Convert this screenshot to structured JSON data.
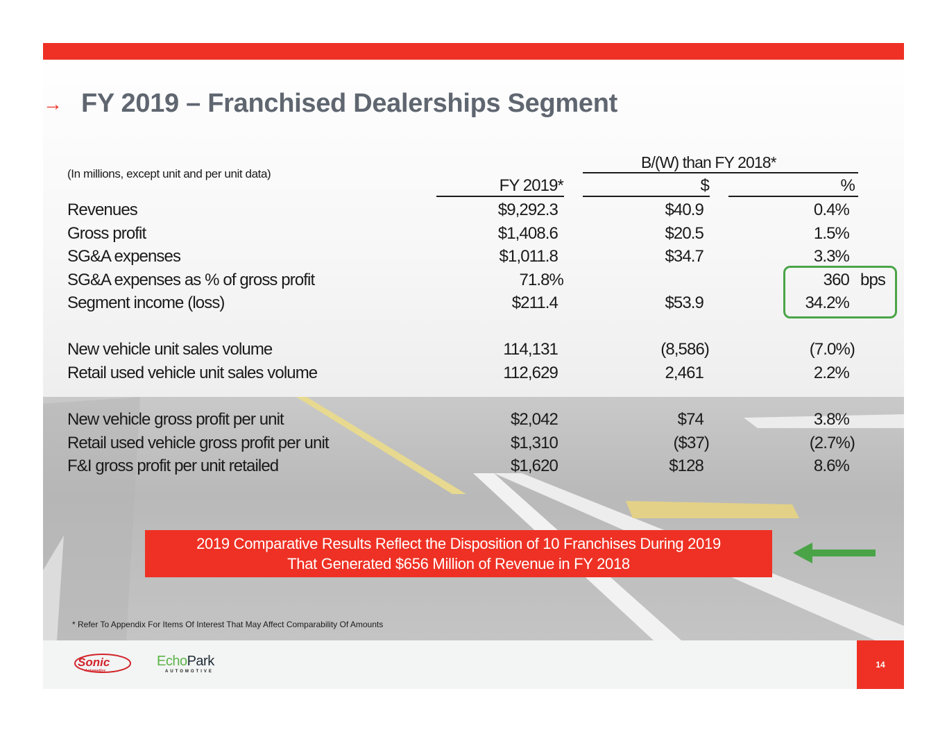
{
  "slide": {
    "title": "FY 2019 – Franchised Dealerships Segment",
    "title_arrow": "→",
    "page_number": "14",
    "colors": {
      "brand_red": "#ee3124",
      "title_gray": "#5f6670",
      "highlight_green": "#4aa447"
    }
  },
  "table": {
    "note": "(In millions, except unit and per unit data)",
    "group_header": "B/(W) than FY 2018*",
    "columns": [
      "FY 2019*",
      "$",
      "%"
    ],
    "rows": [
      {
        "label": "Revenues",
        "fy2019": "$9,292.3",
        "delta_dollar": "$40.9",
        "delta_pct": "0.4%"
      },
      {
        "label": "Gross profit",
        "fy2019": "$1,408.6",
        "delta_dollar": "$20.5",
        "delta_pct": "1.5%"
      },
      {
        "label": "SG&A expenses",
        "fy2019": "$1,011.8",
        "delta_dollar": "$34.7",
        "delta_pct": "3.3%"
      },
      {
        "label": "SG&A expenses as % of gross profit",
        "fy2019": "71.8%",
        "delta_dollar": "",
        "delta_pct": "360",
        "unit": "bps"
      },
      {
        "label": "Segment income (loss)",
        "fy2019": "$211.4",
        "delta_dollar": "$53.9",
        "delta_pct": "34.2%"
      },
      {
        "label": "New vehicle unit sales volume",
        "fy2019": "114,131",
        "delta_dollar": "(8,586)",
        "delta_pct": "(7.0%)"
      },
      {
        "label": "Retail used vehicle unit sales volume",
        "fy2019": "112,629",
        "delta_dollar": "2,461",
        "delta_pct": "2.2%"
      },
      {
        "label": "New vehicle gross profit per unit",
        "fy2019": "$2,042",
        "delta_dollar": "$74",
        "delta_pct": "3.8%"
      },
      {
        "label": "Retail used vehicle gross profit per unit",
        "fy2019": "$1,310",
        "delta_dollar": "($37)",
        "delta_pct": "(2.7%)"
      },
      {
        "label": "F&I gross profit per unit retailed",
        "fy2019": "$1,620",
        "delta_dollar": "$128",
        "delta_pct": "8.6%"
      }
    ]
  },
  "callout": {
    "line1": "2019 Comparative Results Reflect the Disposition of 10 Franchises During 2019",
    "line2": "That Generated $656 Million of Revenue in FY 2018"
  },
  "footnote": "* Refer To Appendix For Items Of Interest That May Affect Comparability Of Amounts",
  "logos": {
    "sonic": "Sonic",
    "sonic_sub": "Automotive",
    "echopark_a": "Echo",
    "echopark_b": "Park",
    "echopark_sub": "AUTOMOTIVE"
  }
}
